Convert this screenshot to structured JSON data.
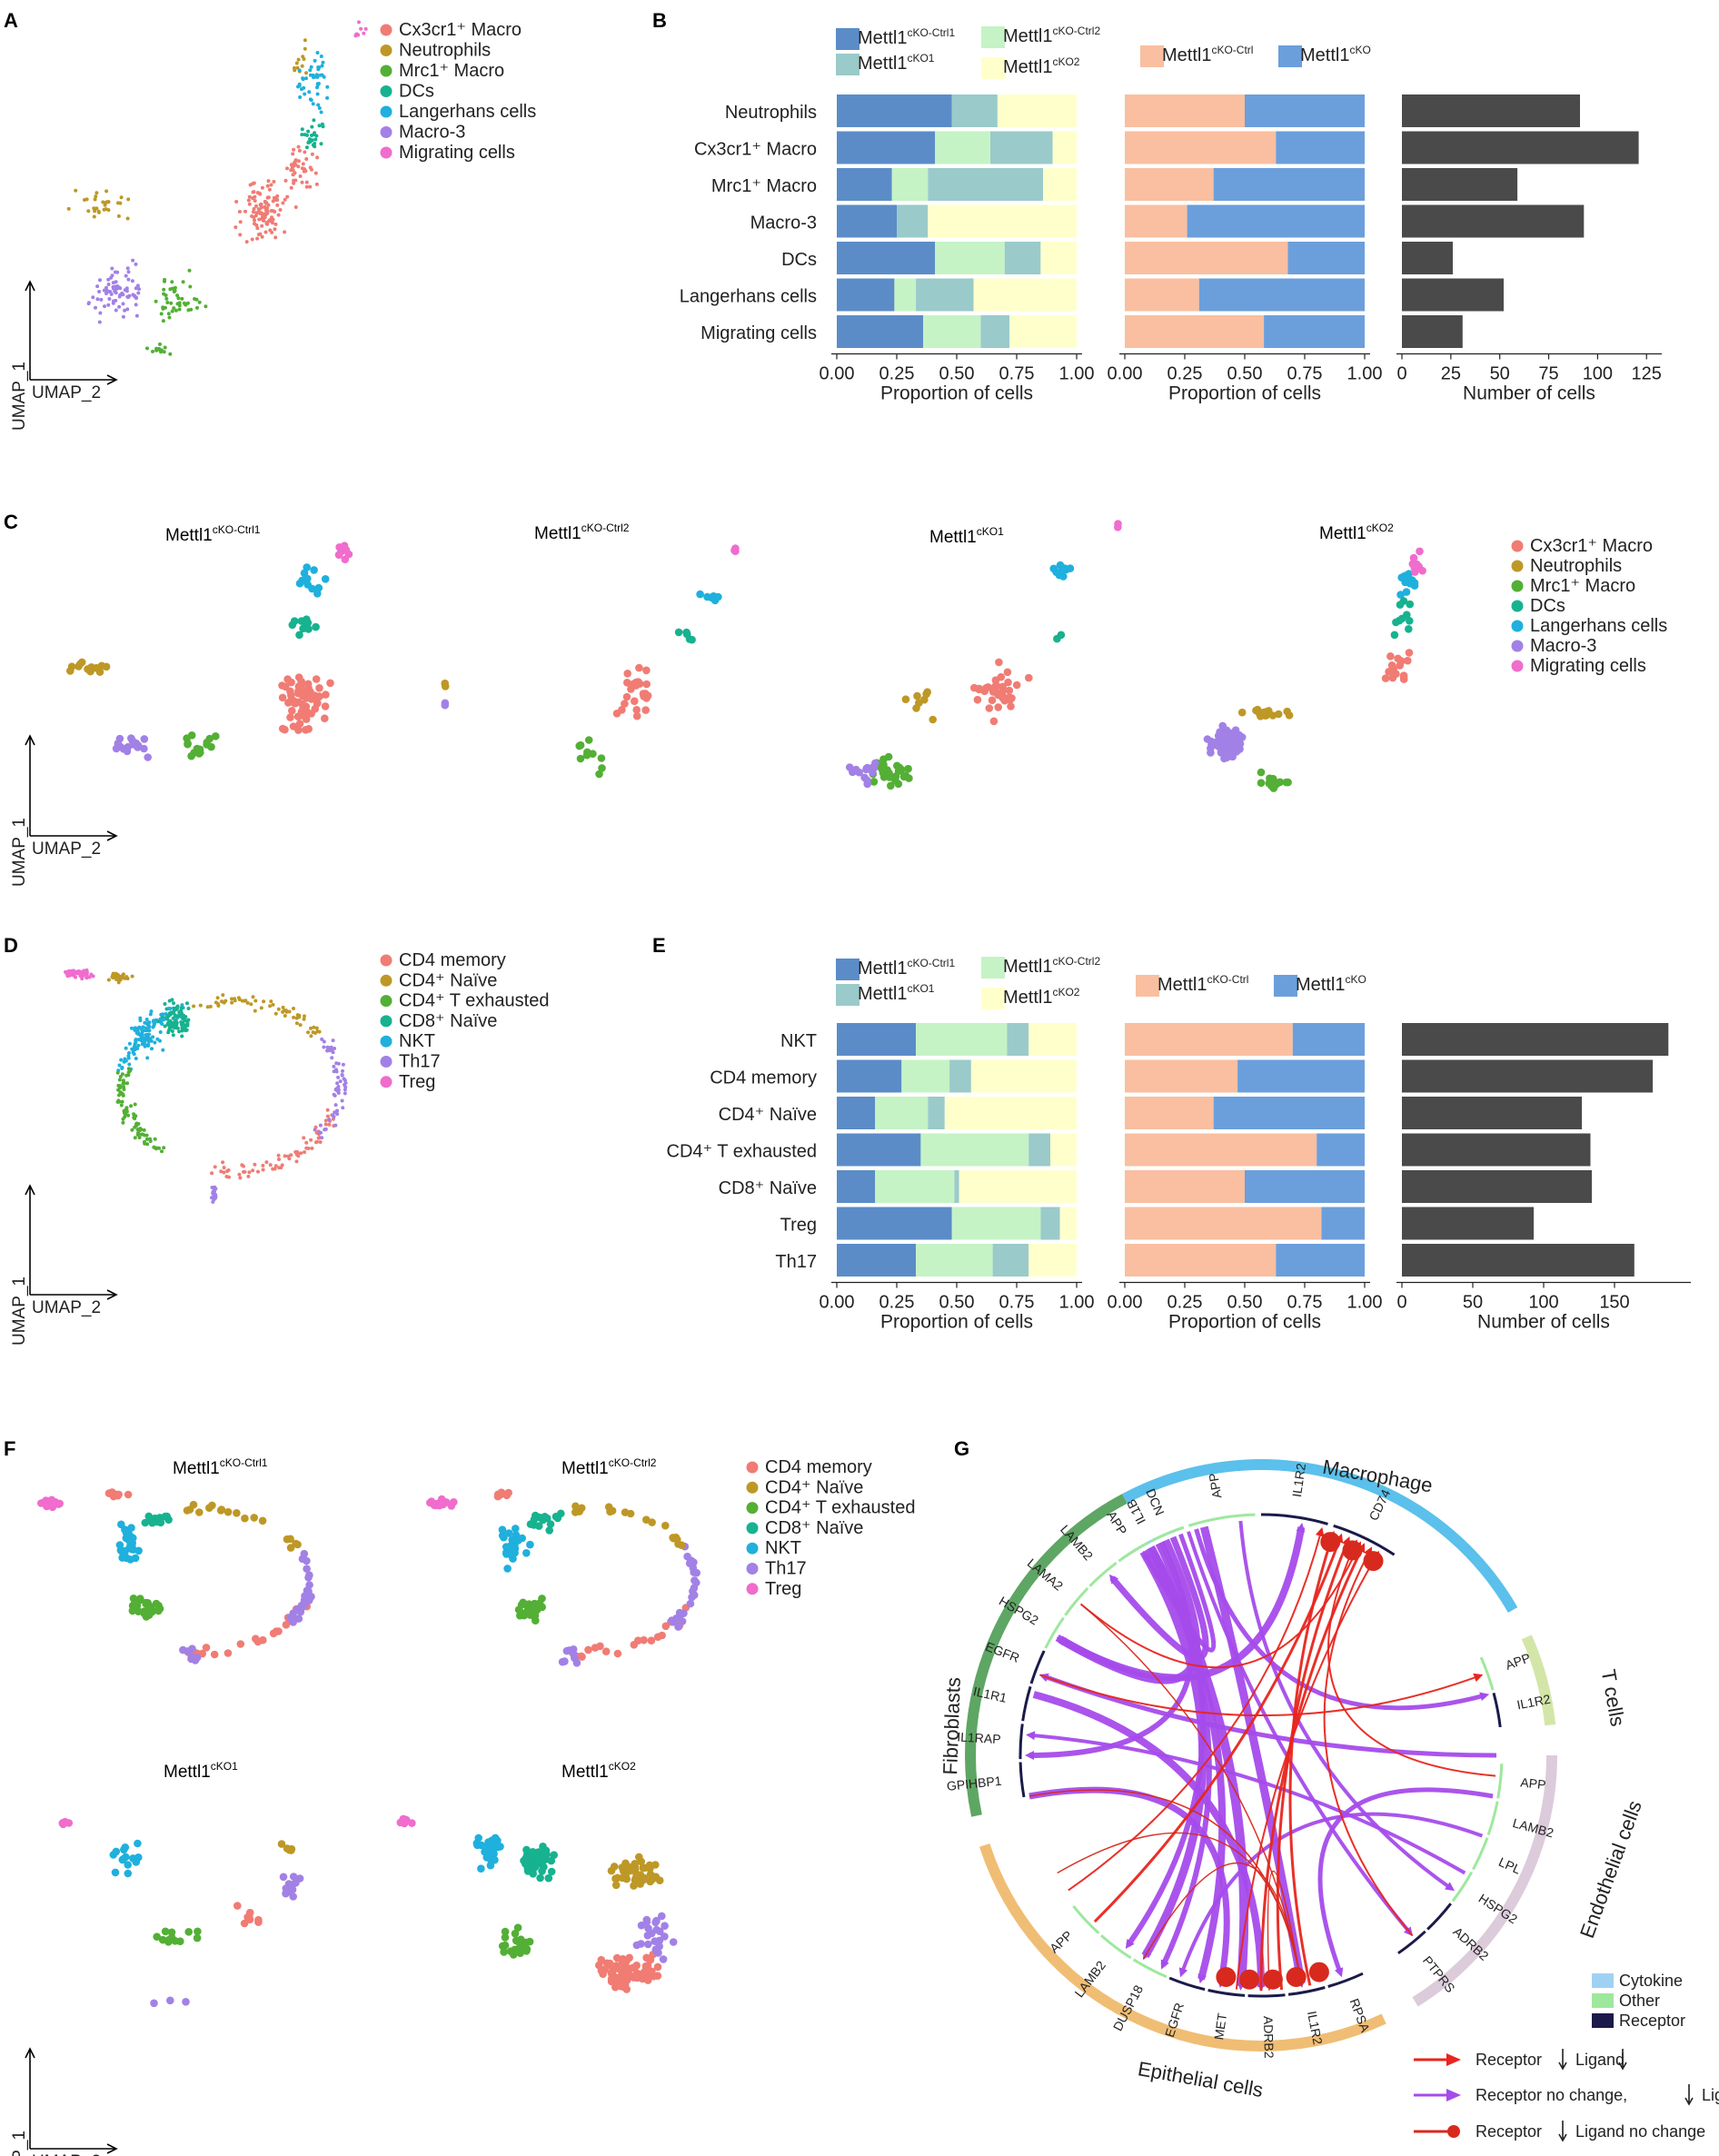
{
  "panels": {
    "A": "A",
    "B": "B",
    "C": "C",
    "D": "D",
    "E": "E",
    "F": "F",
    "G": "G"
  },
  "umap": {
    "x_label": "UMAP_2",
    "y_label": "UMAP_1"
  },
  "myeloid": {
    "legend": [
      "Cx3cr1⁺ Macro",
      "Neutrophils",
      "Mrc1⁺ Macro",
      "DCs",
      "Langerhans cells",
      "Macro-3",
      "Migrating cells"
    ],
    "colors": [
      "#F07C74",
      "#BE9826",
      "#53AF35",
      "#17B28F",
      "#1FB0DD",
      "#A281E6",
      "#F06CCD"
    ]
  },
  "tcell": {
    "legend": [
      "CD4 memory",
      "CD4⁺ Naïve",
      "CD4⁺ T exhausted",
      "CD8⁺ Naïve",
      "NKT",
      "Th17",
      "Treg"
    ],
    "colors": [
      "#F07C74",
      "#BE9826",
      "#53AF35",
      "#17B28F",
      "#1FB0DD",
      "#A281E6",
      "#F06CCD"
    ]
  },
  "sample_titles": {
    "ctrl1": "Mettl1",
    "ctrl1_sup": "cKO-Ctrl1",
    "ctrl2": "Mettl1",
    "ctrl2_sup": "cKO-Ctrl2",
    "ko1": "Mettl1",
    "ko1_sup": "cKO1",
    "ko2": "Mettl1",
    "ko2_sup": "cKO2"
  },
  "bar_legend": {
    "four": [
      {
        "name": "Mettl1",
        "sup": "cKO-Ctrl1",
        "color": "#5B8CC8"
      },
      {
        "name": "Mettl1",
        "sup": "cKO-Ctrl2",
        "color": "#C5F3C5"
      },
      {
        "name": "Mettl1",
        "sup": "cKO1",
        "color": "#9ACACA"
      },
      {
        "name": "Mettl1",
        "sup": "cKO2",
        "color": "#FFFFCC"
      }
    ],
    "two": [
      {
        "name": "Mettl1",
        "sup": "cKO-Ctrl",
        "color": "#F9BFA0"
      },
      {
        "name": "Mettl1",
        "sup": "cKO",
        "color": "#6B9FDB"
      }
    ]
  },
  "chart_data": [
    {
      "type": "bar",
      "id": "B1",
      "orientation": "horizontal",
      "stacked": true,
      "categories": [
        "Neutrophils",
        "Cx3cr1⁺ Macro",
        "Mrc1⁺ Macro",
        "Macro-3",
        "DCs",
        "Langerhans cells",
        "Migrating cells"
      ],
      "series": [
        {
          "name": "Mettl1cKO-Ctrl1",
          "values": [
            0.48,
            0.41,
            0.23,
            0.25,
            0.41,
            0.24,
            0.36
          ]
        },
        {
          "name": "Mettl1cKO-Ctrl2",
          "values": [
            0.0,
            0.23,
            0.15,
            0.0,
            0.29,
            0.09,
            0.24
          ]
        },
        {
          "name": "Mettl1cKO1",
          "values": [
            0.19,
            0.26,
            0.48,
            0.13,
            0.15,
            0.24,
            0.12
          ]
        },
        {
          "name": "Mettl1cKO2",
          "values": [
            0.33,
            0.1,
            0.14,
            0.62,
            0.15,
            0.43,
            0.28
          ]
        }
      ],
      "xlabel": "Proportion of cells",
      "xlim": [
        0,
        1
      ],
      "xticks": [
        "0.00",
        "0.25",
        "0.50",
        "0.75",
        "1.00"
      ]
    },
    {
      "type": "bar",
      "id": "B2",
      "orientation": "horizontal",
      "stacked": true,
      "categories": [
        "Neutrophils",
        "Cx3cr1⁺ Macro",
        "Mrc1⁺ Macro",
        "Macro-3",
        "DCs",
        "Langerhans cells",
        "Migrating cells"
      ],
      "series": [
        {
          "name": "Mettl1cKO-Ctrl",
          "values": [
            0.5,
            0.63,
            0.37,
            0.26,
            0.68,
            0.31,
            0.58
          ]
        },
        {
          "name": "Mettl1cKO",
          "values": [
            0.5,
            0.37,
            0.63,
            0.74,
            0.32,
            0.69,
            0.42
          ]
        }
      ],
      "xlabel": "Proportion of cells",
      "xlim": [
        0,
        1
      ],
      "xticks": [
        "0.00",
        "0.25",
        "0.50",
        "0.75",
        "1.00"
      ]
    },
    {
      "type": "bar",
      "id": "B3",
      "orientation": "horizontal",
      "categories": [
        "Neutrophils",
        "Cx3cr1⁺ Macro",
        "Mrc1⁺ Macro",
        "Macro-3",
        "DCs",
        "Langerhans cells",
        "Migrating cells"
      ],
      "values": [
        91,
        121,
        59,
        93,
        26,
        52,
        31
      ],
      "xlabel": "Number of cells",
      "xlim": [
        0,
        130
      ],
      "xticks": [
        "0",
        "25",
        "50",
        "75",
        "100",
        "125"
      ]
    },
    {
      "type": "bar",
      "id": "E1",
      "orientation": "horizontal",
      "stacked": true,
      "categories": [
        "NKT",
        "CD4 memory",
        "CD4⁺ Naïve",
        "CD4⁺ T exhausted",
        "CD8⁺ Naïve",
        "Treg",
        "Th17"
      ],
      "series": [
        {
          "name": "Mettl1cKO-Ctrl1",
          "values": [
            0.33,
            0.27,
            0.16,
            0.35,
            0.16,
            0.48,
            0.33
          ]
        },
        {
          "name": "Mettl1cKO-Ctrl2",
          "values": [
            0.38,
            0.2,
            0.22,
            0.45,
            0.33,
            0.37,
            0.32
          ]
        },
        {
          "name": "Mettl1cKO1",
          "values": [
            0.09,
            0.09,
            0.07,
            0.09,
            0.02,
            0.08,
            0.15
          ]
        },
        {
          "name": "Mettl1cKO2",
          "values": [
            0.2,
            0.44,
            0.55,
            0.11,
            0.49,
            0.07,
            0.2
          ]
        }
      ],
      "xlabel": "Proportion of cells",
      "xlim": [
        0,
        1
      ],
      "xticks": [
        "0.00",
        "0.25",
        "0.50",
        "0.75",
        "1.00"
      ]
    },
    {
      "type": "bar",
      "id": "E2",
      "orientation": "horizontal",
      "stacked": true,
      "categories": [
        "NKT",
        "CD4 memory",
        "CD4⁺ Naïve",
        "CD4⁺ T exhausted",
        "CD8⁺ Naïve",
        "Treg",
        "Th17"
      ],
      "series": [
        {
          "name": "Mettl1cKO-Ctrl",
          "values": [
            0.7,
            0.47,
            0.37,
            0.8,
            0.5,
            0.82,
            0.63
          ]
        },
        {
          "name": "Mettl1cKO",
          "values": [
            0.3,
            0.53,
            0.63,
            0.2,
            0.5,
            0.18,
            0.37
          ]
        }
      ],
      "xlabel": "Proportion of cells",
      "xlim": [
        0,
        1
      ],
      "xticks": [
        "0.00",
        "0.25",
        "0.50",
        "0.75",
        "1.00"
      ]
    },
    {
      "type": "bar",
      "id": "E3",
      "orientation": "horizontal",
      "categories": [
        "NKT",
        "CD4 memory",
        "CD4⁺ Naïve",
        "CD4⁺ T exhausted",
        "CD8⁺ Naïve",
        "Treg",
        "Th17"
      ],
      "values": [
        188,
        177,
        127,
        133,
        134,
        93,
        164
      ],
      "xlabel": "Number of cells",
      "xlim": [
        0,
        200
      ],
      "xticks": [
        "0",
        "50",
        "100",
        "150"
      ]
    }
  ],
  "circos": {
    "groups": [
      {
        "label": "Macrophage",
        "color": "#5BC0EB"
      },
      {
        "label": "T cells",
        "color": "#D3E6A8"
      },
      {
        "label": "Endothelial cells",
        "color": "#DCCBDA"
      },
      {
        "label": "Epithelial cells",
        "color": "#F0BD74"
      },
      {
        "label": "Fibroblasts",
        "color": "#5EA663"
      }
    ],
    "genes": {
      "macrophage": [
        "IL1B",
        "APP",
        "IL1R2",
        "CD74"
      ],
      "tcells": [
        "APP",
        "IL1R2"
      ],
      "endothelial": [
        "APP",
        "LAMB2",
        "LPL",
        "HSPG2",
        "ADRB2",
        "PTPRS"
      ],
      "epithelial": [
        "RPSA",
        "IL1R2",
        "ADRB2",
        "MET",
        "EGFR",
        "DUSP18",
        "LAMB2",
        "APP"
      ],
      "fibroblasts": [
        "GPIHBP1",
        "IL1RAP",
        "IL1R1",
        "EGFR",
        "HSPG2",
        "LAMA2",
        "LAMB2",
        "APP",
        "DCN"
      ]
    },
    "legend": [
      {
        "label": "Cytokine",
        "color": "#9FD2F2"
      },
      {
        "label": "Other",
        "color": "#9EE89E"
      },
      {
        "label": "Receptor",
        "color": "#1B1A4A"
      }
    ],
    "arrow_legend": [
      {
        "label": "Receptor",
        "label2": "Ligand",
        "color": "#E8251E"
      },
      {
        "label": "Receptor no change,",
        "label2": "Ligand",
        "color": "#A54BEB"
      },
      {
        "label": "Receptor",
        "label2": "Ligand no change",
        "color": "#D8291E"
      }
    ]
  }
}
